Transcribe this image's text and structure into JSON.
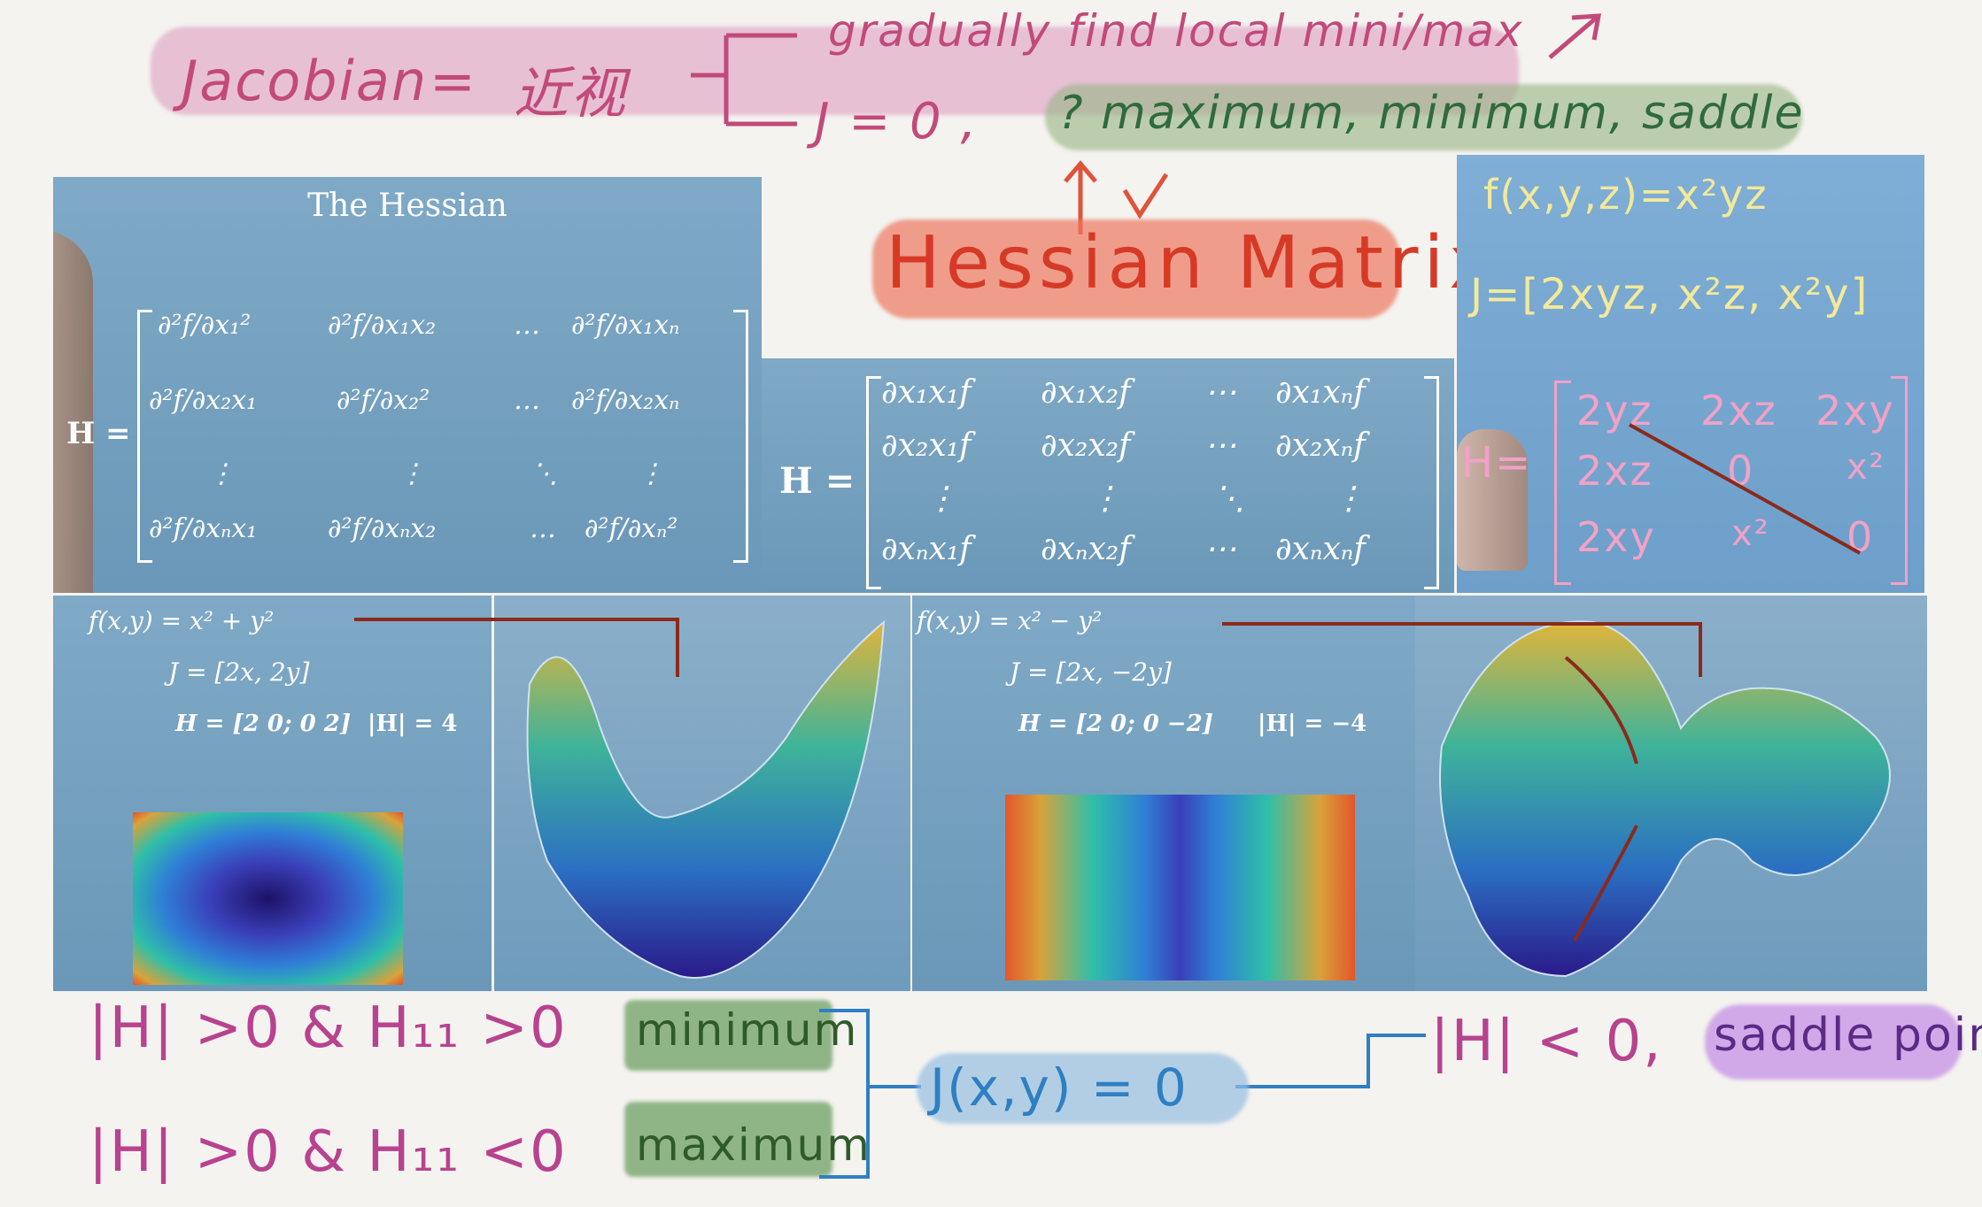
{
  "top_note": {
    "jacobian_label": "Jacobian",
    "equals": "=",
    "jacobian_cn": "近视",
    "branch1": "gradually find local mini/max",
    "branch2_prefix": "J = 0 ,",
    "branch2": "? maximum, minimum, saddle",
    "hessian_title": "Hessian Matrix"
  },
  "slide_hessian": {
    "title": "The Hessian",
    "H_label": "H =",
    "rows": [
      [
        "∂²f/∂x₁²",
        "∂²f/∂x₁x₂",
        "…",
        "∂²f/∂x₁xₙ"
      ],
      [
        "∂²f/∂x₂x₁",
        "∂²f/∂x₂²",
        "…",
        "∂²f/∂x₂xₙ"
      ],
      [
        "⋮",
        "⋮",
        "⋱",
        "⋮"
      ],
      [
        "∂²f/∂xₙx₁",
        "∂²f/∂xₙx₂",
        "…",
        "∂²f/∂xₙ²"
      ]
    ]
  },
  "slide_partial": {
    "H_label": "H =",
    "rows": [
      [
        "∂x₁x₁f",
        "∂x₁x₂f",
        "⋯",
        "∂x₁xₙf"
      ],
      [
        "∂x₂x₁f",
        "∂x₂x₂f",
        "⋯",
        "∂x₂xₙf"
      ],
      [
        "⋮",
        "⋮",
        "⋱",
        "⋮"
      ],
      [
        "∂xₙx₁f",
        "∂xₙx₂f",
        "⋯",
        "∂xₙxₙf"
      ]
    ]
  },
  "slide_example": {
    "func": "f(x,y,z)=x²yz",
    "jacobian": "J=[2xyz, x²z, x²y]",
    "H_label": "H=",
    "rows": [
      [
        "2yz",
        "2xz",
        "2xy"
      ],
      [
        "2xz",
        "0",
        "x²"
      ],
      [
        "2xy",
        "x²",
        "0"
      ]
    ]
  },
  "slide_min": {
    "func": "f(x,y) = x² + y²",
    "jac": "J = [2x, 2y]",
    "H": "H = [2 0; 0 2]",
    "det": "|H| = 4"
  },
  "slide_saddle": {
    "func": "f(x,y) = x² − y²",
    "jac": "J = [2x, −2y]",
    "H": "H = [2 0; 0 −2]",
    "det": "|H| = −4"
  },
  "bottom_note": {
    "cond_min": "|H| >0 & H₁₁ >0",
    "cond_max": "|H| >0 & H₁₁ <0",
    "label_min": "minimum",
    "label_max": "maximum",
    "center": "J(x,y) = 0",
    "cond_saddle": "|H| < 0,",
    "label_saddle": "saddle point"
  }
}
